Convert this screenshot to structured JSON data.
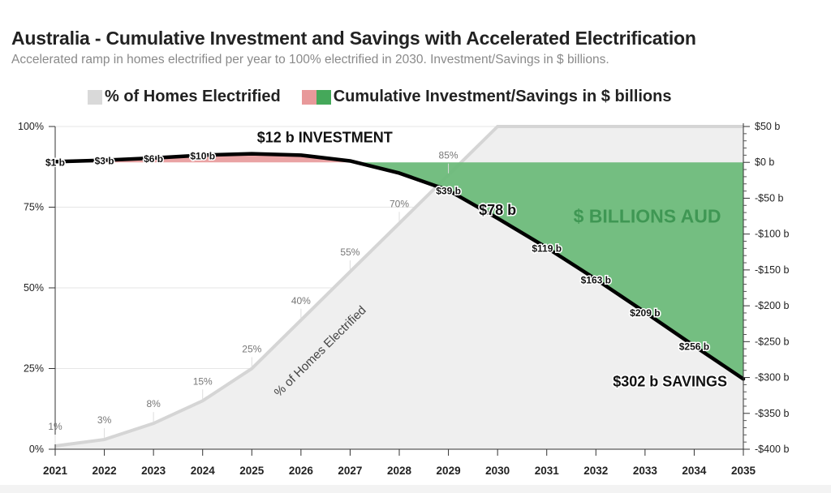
{
  "chart_data": {
    "type": "area",
    "title": "Australia - Cumulative Investment and Savings with Accelerated Electrification",
    "subtitle": "Accelerated ramp in homes electrified per year to 100% electrified in 2030. Investment/Savings in $ billions.",
    "legend": [
      {
        "label": "% of Homes Electrified",
        "colors": [
          "#d9d9d9"
        ]
      },
      {
        "label": "Cumulative Investment/Savings in $ billions",
        "colors": [
          "#e8999a",
          "#45a85a"
        ]
      }
    ],
    "legend_position": "top",
    "x": [
      2021,
      2022,
      2023,
      2024,
      2025,
      2026,
      2027,
      2028,
      2029,
      2030,
      2031,
      2032,
      2033,
      2034,
      2035
    ],
    "x_tick_labels": [
      "2021",
      "2022",
      "2023",
      "2024",
      "2025",
      "2026",
      "2027",
      "2028",
      "2029",
      "2030",
      "2031",
      "2032",
      "2033",
      "2034",
      "2035"
    ],
    "xlim": [
      2021,
      2035
    ],
    "y_left": {
      "ylim": [
        0,
        100
      ],
      "tick_labels": [
        "0%",
        "25%",
        "50%",
        "75%",
        "100%"
      ],
      "tick_values": [
        0,
        25,
        50,
        75,
        100
      ]
    },
    "y_right": {
      "ylim": [
        -400,
        50
      ],
      "tick_labels": [
        "$50 b",
        "$0 b",
        "-$50 b",
        "-$100 b",
        "-$150 b",
        "-$200 b",
        "-$250 b",
        "-$300 b",
        "-$350 b",
        "-$400 b"
      ],
      "tick_values": [
        50,
        0,
        -50,
        -100,
        -150,
        -200,
        -250,
        -300,
        -350,
        -400
      ]
    },
    "grid": true,
    "series": [
      {
        "name": "% of Homes Electrified",
        "axis": "left",
        "x": [
          2021,
          2022,
          2023,
          2024,
          2025,
          2026,
          2027,
          2028,
          2029,
          2030,
          2035
        ],
        "values": [
          1,
          3,
          8,
          15,
          25,
          40,
          55,
          70,
          85,
          100,
          100
        ],
        "point_labels": [
          "1%",
          "3%",
          "8%",
          "15%",
          "25%",
          "40%",
          "55%",
          "70%",
          "85%",
          "",
          ""
        ],
        "inline_label": "% of Homes Electrified"
      },
      {
        "name": "Cumulative Investment/Savings in $ billions",
        "axis": "right",
        "x": [
          2021,
          2022,
          2023,
          2024,
          2025,
          2026,
          2027,
          2028,
          2029,
          2030,
          2031,
          2032,
          2033,
          2034,
          2035
        ],
        "values": [
          1,
          3,
          6,
          10,
          12,
          10,
          2,
          -15,
          -39,
          -78,
          -119,
          -163,
          -209,
          -256,
          -302
        ],
        "point_labels": [
          "$1 b",
          "$3 b",
          "$6 b",
          "$10 b",
          "",
          "",
          "",
          "",
          "$39 b",
          "",
          "$119 b",
          "$163 b",
          "$209 b",
          "$256 b",
          ""
        ]
      }
    ],
    "annotations": [
      {
        "text": "$12 b INVESTMENT",
        "x": 2025,
        "y": 12
      },
      {
        "text": "$78 b",
        "x": 2030,
        "y": -78
      },
      {
        "text": "$302 b SAVINGS",
        "x": 2035,
        "y": -302
      },
      {
        "text": "$ BILLIONS AUD",
        "x": 2032.5,
        "y": -75
      }
    ]
  }
}
